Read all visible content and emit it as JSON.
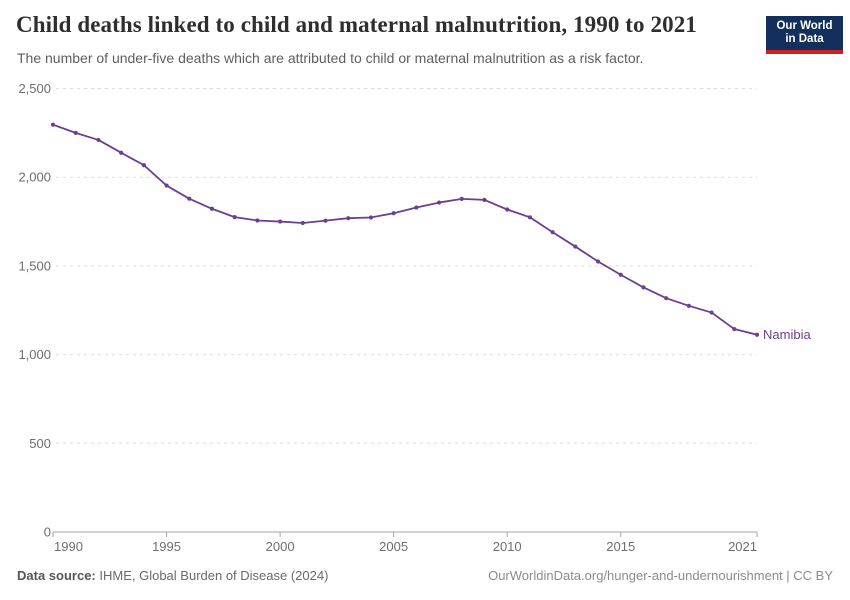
{
  "header": {
    "logo": {
      "line1": "Our World",
      "line2": "in Data",
      "background": "#12305b",
      "accent": "#cb2120"
    }
  },
  "chart_data": {
    "type": "line",
    "title": "Child deaths linked to child and maternal malnutrition, 1990 to 2021",
    "subtitle": "The number of under-five deaths which are attributed to child or maternal malnutrition as a risk factor.",
    "xlim": [
      1990,
      2021
    ],
    "ylim": [
      0,
      2500
    ],
    "grid": "horizontal-dashed",
    "legend_position": "end-of-line-label",
    "x_ticks": [
      {
        "x": 1990,
        "label": "1990"
      },
      {
        "x": 1995,
        "label": "1995"
      },
      {
        "x": 2000,
        "label": "2000"
      },
      {
        "x": 2005,
        "label": "2005"
      },
      {
        "x": 2010,
        "label": "2010"
      },
      {
        "x": 2015,
        "label": "2015"
      },
      {
        "x": 2021,
        "label": "2021"
      }
    ],
    "y_ticks": [
      {
        "value": 0,
        "label": "0"
      },
      {
        "value": 500,
        "label": "500"
      },
      {
        "value": 1000,
        "label": "1,000"
      },
      {
        "value": 1500,
        "label": "1,500"
      },
      {
        "value": 2000,
        "label": "2,000"
      },
      {
        "value": 2500,
        "label": "2,500"
      }
    ],
    "series": [
      {
        "name": "Namibia",
        "color": "#6d3e91",
        "x": [
          1990,
          1991,
          1992,
          1993,
          1994,
          1995,
          1996,
          1997,
          1998,
          1999,
          2000,
          2001,
          2002,
          2003,
          2004,
          2005,
          2006,
          2007,
          2008,
          2009,
          2010,
          2011,
          2012,
          2013,
          2014,
          2015,
          2016,
          2017,
          2018,
          2019,
          2020,
          2021
        ],
        "values": [
          2296,
          2250,
          2210,
          2138,
          2068,
          1953,
          1879,
          1822,
          1775,
          1756,
          1750,
          1742,
          1755,
          1769,
          1773,
          1797,
          1829,
          1857,
          1878,
          1872,
          1818,
          1774,
          1690,
          1609,
          1525,
          1450,
          1379,
          1318,
          1275,
          1237,
          1144,
          1112
        ]
      }
    ]
  },
  "footer": {
    "source_label": "Data source:",
    "source_text": "IHME, Global Burden of Disease (2024)",
    "credit": "OurWorldinData.org/hunger-and-undernourishment | CC BY"
  }
}
